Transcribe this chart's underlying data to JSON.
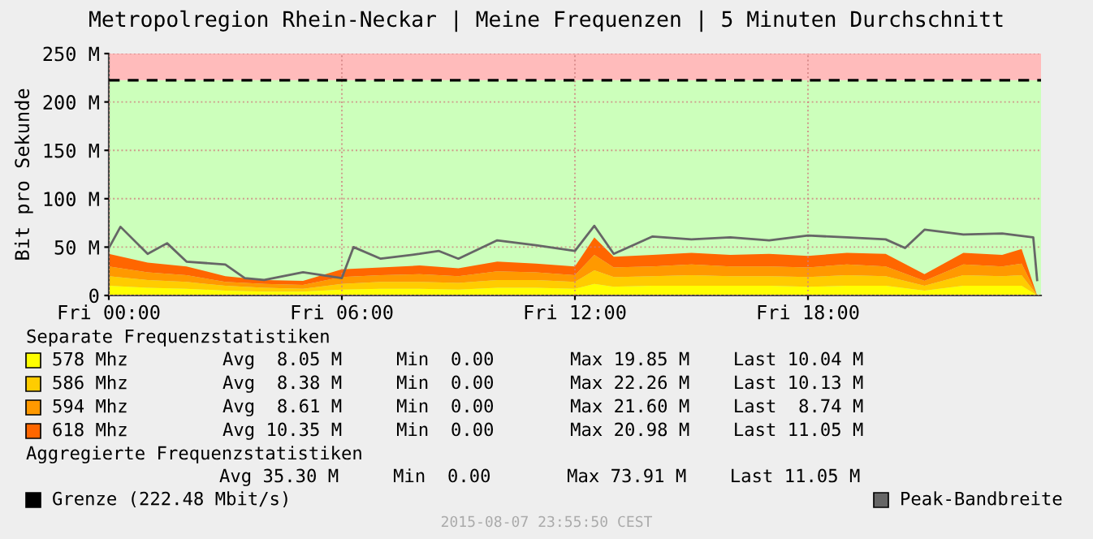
{
  "chart_data": {
    "type": "area",
    "stacked": true,
    "title": "Metropolregion Rhein-Neckar | Meine Frequenzen | 5 Minuten Durchschnitt",
    "ylabel": "Bit pro Sekunde",
    "x": [
      "2015-08-07T00:00",
      "2015-08-07T01:00",
      "2015-08-07T02:00",
      "2015-08-07T03:00",
      "2015-08-07T04:00",
      "2015-08-07T05:00",
      "2015-08-07T06:00",
      "2015-08-07T07:00",
      "2015-08-07T08:00",
      "2015-08-07T09:00",
      "2015-08-07T10:00",
      "2015-08-07T11:00",
      "2015-08-07T12:00",
      "2015-08-07T12:30",
      "2015-08-07T13:00",
      "2015-08-07T14:00",
      "2015-08-07T15:00",
      "2015-08-07T16:00",
      "2015-08-07T17:00",
      "2015-08-07T18:00",
      "2015-08-07T19:00",
      "2015-08-07T20:00",
      "2015-08-07T21:00",
      "2015-08-07T22:00",
      "2015-08-07T23:00",
      "2015-08-07T23:30",
      "2015-08-07T23:54"
    ],
    "series": [
      {
        "name": "578 Mhz",
        "color": "#ffff00",
        "values": [
          10,
          8,
          7,
          5,
          4,
          4,
          6,
          7,
          7,
          6,
          8,
          8,
          7,
          12,
          9,
          10,
          10,
          10,
          10,
          9,
          10,
          10,
          5,
          10,
          10,
          10,
          0
        ]
      },
      {
        "name": "586 Mhz",
        "color": "#ffcc00",
        "values": [
          10,
          8,
          7,
          5,
          4,
          3,
          6,
          7,
          7,
          7,
          8,
          8,
          7,
          14,
          10,
          10,
          11,
          10,
          10,
          10,
          11,
          10,
          5,
          11,
          10,
          11,
          0
        ]
      },
      {
        "name": "594 Mhz",
        "color": "#ff9900",
        "values": [
          10,
          8,
          7,
          4,
          4,
          4,
          7,
          7,
          8,
          7,
          9,
          8,
          7,
          16,
          10,
          10,
          11,
          10,
          10,
          10,
          11,
          10,
          5,
          11,
          10,
          12,
          0
        ]
      },
      {
        "name": "618 Mhz",
        "color": "#ff6600",
        "values": [
          13,
          10,
          9,
          6,
          4,
          4,
          8,
          8,
          9,
          8,
          10,
          9,
          9,
          18,
          11,
          12,
          12,
          12,
          13,
          12,
          12,
          13,
          7,
          12,
          12,
          15,
          0
        ]
      },
      {
        "name": "Peak-Bandbreite",
        "type": "line",
        "color": "#666666",
        "x": [
          "2015-08-07T00:00",
          "2015-08-07T00:18",
          "2015-08-07T01:00",
          "2015-08-07T01:30",
          "2015-08-07T02:00",
          "2015-08-07T03:00",
          "2015-08-07T03:30",
          "2015-08-07T04:00",
          "2015-08-07T05:00",
          "2015-08-07T06:00",
          "2015-08-07T06:18",
          "2015-08-07T07:00",
          "2015-08-07T08:00",
          "2015-08-07T08:30",
          "2015-08-07T09:00",
          "2015-08-07T10:00",
          "2015-08-07T11:00",
          "2015-08-07T12:00",
          "2015-08-07T12:30",
          "2015-08-07T13:00",
          "2015-08-07T14:00",
          "2015-08-07T15:00",
          "2015-08-07T16:00",
          "2015-08-07T17:00",
          "2015-08-07T18:00",
          "2015-08-07T19:00",
          "2015-08-07T20:00",
          "2015-08-07T20:30",
          "2015-08-07T21:00",
          "2015-08-07T22:00",
          "2015-08-07T23:00",
          "2015-08-07T23:48",
          "2015-08-07T23:54"
        ],
        "values": [
          49,
          71,
          43,
          54,
          35,
          32,
          18,
          16,
          24,
          18,
          50,
          38,
          43,
          46,
          38,
          57,
          52,
          46,
          72,
          43,
          61,
          58,
          60,
          57,
          62,
          60,
          58,
          49,
          68,
          63,
          64,
          60,
          16
        ]
      }
    ],
    "xlim": [
      "2015-08-07T00:00",
      "2015-08-08T00:00"
    ],
    "xticks": [
      {
        "value": "2015-08-07T00:00",
        "label": "Fri 00:00"
      },
      {
        "value": "2015-08-07T06:00",
        "label": "Fri 06:00"
      },
      {
        "value": "2015-08-07T12:00",
        "label": "Fri 12:00"
      },
      {
        "value": "2015-08-07T18:00",
        "label": "Fri 18:00"
      }
    ],
    "ylim": [
      0,
      250
    ],
    "yticks": [
      0,
      {
        "value": 50,
        "label": "50 M"
      },
      {
        "value": 100,
        "label": "100 M"
      },
      {
        "value": 150,
        "label": "150 M"
      },
      {
        "value": 200,
        "label": "200 M"
      },
      {
        "value": 250,
        "label": "250 M"
      }
    ],
    "ref_lines": [
      {
        "axis": "y",
        "value": 222.48,
        "label": "Grenze (222.48 Mbit/s)",
        "color": "#000000",
        "line_style": "dashed"
      }
    ],
    "bands": [
      {
        "axis": "y",
        "from": 0,
        "to": 222.48,
        "color": "#ccffbb"
      },
      {
        "axis": "y",
        "from": 222.48,
        "to": 250,
        "color": "#ffbbbb"
      }
    ],
    "grid": true,
    "legend": "bottom",
    "annotations": [
      "Separate Frequenzstatistiken",
      "Avg  8.05 M     Min  0.00       Max 19.85 M    Last 10.04 M",
      "Avg  8.38 M     Min  0.00       Max 22.26 M    Last 10.13 M",
      "Avg  8.61 M     Min  0.00       Max 21.60 M    Last  8.74 M",
      "Avg 10.35 M     Min  0.00       Max 20.98 M    Last 11.05 M",
      "Aggregierte Frequenzstatistiken",
      "Avg 35.30 M     Min  0.00       Max 73.91 M    Last 11.05 M",
      "2015-08-07 23:55:50 CEST"
    ]
  }
}
